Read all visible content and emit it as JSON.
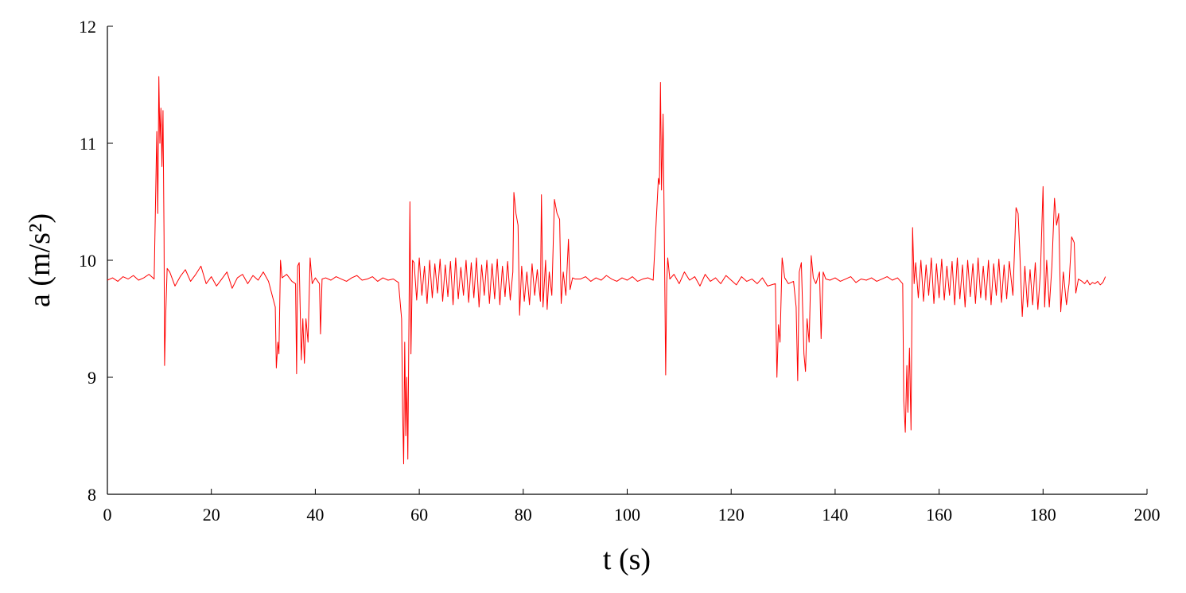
{
  "chart_data": {
    "type": "line",
    "xlabel": "t (s)",
    "ylabel": "a (m/s²)",
    "xlim": [
      0,
      200
    ],
    "xticks": [
      0,
      20,
      40,
      60,
      80,
      100,
      120,
      140,
      160,
      180,
      200
    ],
    "ylim": [
      8,
      12
    ],
    "yticks": [
      8,
      9,
      10,
      11,
      12
    ],
    "color": "#ff0000",
    "x": [
      0,
      1,
      2,
      3,
      4,
      5,
      6,
      7,
      8,
      9,
      9.5,
      9.7,
      9.9,
      10.1,
      10.3,
      10.5,
      10.7,
      10.9,
      11.0,
      11.2,
      11.5,
      12,
      13,
      14,
      15,
      16,
      17,
      18,
      19,
      20,
      21,
      22,
      23,
      24,
      25,
      26,
      27,
      28,
      29,
      30,
      31,
      32.3,
      32.5,
      32.8,
      33.0,
      33.3,
      33.6,
      34.5,
      35.5,
      36.2,
      36.4,
      36.6,
      36.9,
      37.3,
      37.6,
      37.9,
      38.2,
      38.6,
      39.0,
      39.4,
      40.0,
      40.8,
      41.0,
      41.3,
      42,
      43,
      44,
      45,
      46,
      47,
      48,
      49,
      50,
      51,
      52,
      53,
      54,
      55,
      56,
      56.6,
      56.8,
      57.0,
      57.2,
      57.4,
      57.6,
      57.8,
      58.0,
      58.2,
      58.4,
      58.7,
      59,
      59.5,
      60,
      60.5,
      61,
      61.5,
      62,
      62.5,
      63,
      63.5,
      64,
      64.5,
      65,
      65.5,
      66,
      66.5,
      67,
      67.5,
      68,
      68.5,
      69,
      69.5,
      70,
      70.5,
      71,
      71.5,
      72,
      72.5,
      73,
      73.5,
      74,
      74.5,
      75,
      75.5,
      76,
      76.5,
      77,
      77.5,
      78.0,
      78.2,
      78.6,
      79.0,
      79.3,
      79.7,
      80.2,
      80.7,
      81.2,
      81.7,
      82.2,
      82.7,
      83.3,
      83.5,
      83.8,
      84.3,
      84.6,
      85.0,
      85.5,
      86.0,
      86.5,
      87.0,
      87.3,
      87.7,
      88.2,
      88.7,
      89.0,
      89.5,
      90.0,
      91,
      92,
      93,
      94,
      95,
      96,
      97,
      98,
      99,
      100,
      101,
      102,
      103,
      104,
      105,
      106.0,
      106.2,
      106.4,
      106.6,
      106.9,
      107.1,
      107.4,
      107.6,
      107.8,
      108.2,
      109,
      110,
      111,
      112,
      113,
      114,
      115,
      116,
      117,
      118,
      119,
      120,
      121,
      122,
      123,
      124,
      125,
      126,
      127,
      128.5,
      128.8,
      129.1,
      129.4,
      129.8,
      130.3,
      131.0,
      132.0,
      132.5,
      132.8,
      133.1,
      133.5,
      134.0,
      134.3,
      134.6,
      135.0,
      135.4,
      135.8,
      136.3,
      137.0,
      137.3,
      137.7,
      138.2,
      139,
      140,
      141,
      142,
      143,
      144,
      145,
      146,
      147,
      148,
      149,
      150,
      151,
      152,
      153.0,
      153.2,
      153.5,
      153.8,
      154.0,
      154.3,
      154.6,
      154.9,
      155.2,
      155.5,
      156,
      156.5,
      157,
      157.5,
      158,
      158.5,
      159,
      159.5,
      160,
      160.5,
      161,
      161.5,
      162,
      162.5,
      163,
      163.5,
      164,
      164.5,
      165,
      165.5,
      166,
      166.5,
      167,
      167.5,
      168,
      168.5,
      169,
      169.5,
      170,
      170.5,
      171,
      171.5,
      172,
      172.5,
      173,
      173.5,
      174.2,
      174.8,
      175.2,
      175.5,
      176.0,
      176.5,
      177.0,
      177.5,
      178.0,
      178.5,
      179.0,
      179.5,
      180.0,
      180.3,
      180.7,
      181.2,
      181.7,
      182.2,
      182.6,
      183.0,
      183.4,
      183.9,
      184.5,
      185.0,
      185.5,
      186.0,
      186.3,
      186.8,
      187.5,
      188,
      188.5,
      189,
      189.5,
      190,
      190.5,
      191,
      191.5,
      192
    ],
    "values": [
      9.83,
      9.85,
      9.82,
      9.86,
      9.84,
      9.87,
      9.83,
      9.85,
      9.88,
      9.84,
      11.1,
      10.4,
      11.57,
      11.0,
      11.3,
      10.8,
      11.28,
      10.2,
      9.1,
      9.5,
      9.93,
      9.9,
      9.78,
      9.86,
      9.92,
      9.82,
      9.88,
      9.95,
      9.8,
      9.86,
      9.78,
      9.84,
      9.9,
      9.76,
      9.85,
      9.88,
      9.8,
      9.87,
      9.83,
      9.9,
      9.82,
      9.6,
      9.08,
      9.3,
      9.2,
      10.0,
      9.85,
      9.88,
      9.82,
      9.8,
      9.03,
      9.95,
      9.98,
      9.15,
      9.5,
      9.12,
      9.5,
      9.3,
      10.02,
      9.8,
      9.85,
      9.8,
      9.37,
      9.84,
      9.85,
      9.83,
      9.86,
      9.84,
      9.82,
      9.85,
      9.87,
      9.83,
      9.84,
      9.86,
      9.82,
      9.85,
      9.83,
      9.84,
      9.81,
      9.5,
      8.7,
      8.26,
      9.3,
      8.5,
      9.0,
      8.3,
      9.4,
      10.5,
      9.2,
      10.0,
      9.98,
      9.66,
      10.02,
      9.7,
      9.95,
      9.63,
      10.0,
      9.68,
      9.97,
      9.72,
      10.01,
      9.65,
      9.96,
      9.69,
      9.99,
      9.62,
      10.02,
      9.67,
      9.94,
      9.7,
      10.0,
      9.64,
      9.98,
      9.68,
      10.02,
      9.6,
      9.96,
      9.7,
      10.0,
      9.63,
      9.97,
      9.67,
      10.01,
      9.62,
      9.95,
      9.69,
      9.99,
      9.66,
      9.9,
      10.58,
      10.4,
      10.3,
      9.53,
      9.95,
      9.65,
      9.9,
      9.62,
      9.97,
      9.7,
      9.92,
      9.65,
      10.56,
      9.6,
      10.0,
      9.58,
      9.9,
      9.7,
      10.52,
      10.4,
      10.35,
      9.63,
      9.9,
      9.7,
      10.18,
      9.75,
      9.85,
      9.84,
      9.84,
      9.86,
      9.82,
      9.85,
      9.83,
      9.87,
      9.84,
      9.82,
      9.85,
      9.83,
      9.86,
      9.82,
      9.84,
      9.85,
      9.83,
      10.7,
      10.65,
      11.52,
      10.6,
      11.25,
      10.4,
      9.02,
      9.8,
      10.02,
      9.84,
      9.88,
      9.8,
      9.9,
      9.83,
      9.86,
      9.78,
      9.88,
      9.82,
      9.85,
      9.8,
      9.87,
      9.83,
      9.79,
      9.86,
      9.82,
      9.84,
      9.8,
      9.85,
      9.78,
      9.8,
      9.0,
      9.45,
      9.3,
      10.02,
      9.85,
      9.8,
      9.82,
      9.6,
      8.97,
      9.9,
      9.98,
      9.2,
      9.05,
      9.5,
      9.3,
      10.04,
      9.85,
      9.8,
      9.9,
      9.33,
      9.9,
      9.84,
      9.83,
      9.85,
      9.82,
      9.84,
      9.86,
      9.81,
      9.84,
      9.83,
      9.85,
      9.82,
      9.84,
      9.86,
      9.83,
      9.85,
      9.8,
      8.8,
      8.53,
      9.1,
      8.7,
      9.25,
      8.55,
      10.28,
      9.8,
      9.98,
      9.68,
      10.0,
      9.65,
      9.96,
      9.7,
      10.02,
      9.63,
      9.97,
      9.68,
      10.01,
      9.66,
      9.95,
      9.7,
      9.99,
      9.62,
      10.02,
      9.67,
      9.96,
      9.6,
      10.0,
      9.69,
      9.97,
      9.63,
      10.02,
      9.68,
      9.95,
      9.66,
      10.0,
      9.62,
      9.97,
      9.7,
      10.01,
      9.64,
      9.96,
      9.67,
      9.99,
      9.7,
      10.45,
      10.4,
      10.1,
      9.52,
      9.95,
      9.6,
      9.92,
      9.62,
      9.98,
      9.58,
      9.9,
      10.63,
      9.6,
      10.0,
      9.6,
      9.95,
      10.53,
      10.3,
      10.4,
      9.56,
      9.9,
      9.62,
      9.8,
      10.2,
      10.15,
      9.72,
      9.84,
      9.82,
      9.8,
      9.83,
      9.79,
      9.81,
      9.8,
      9.82,
      9.79,
      9.81,
      9.86
    ]
  }
}
